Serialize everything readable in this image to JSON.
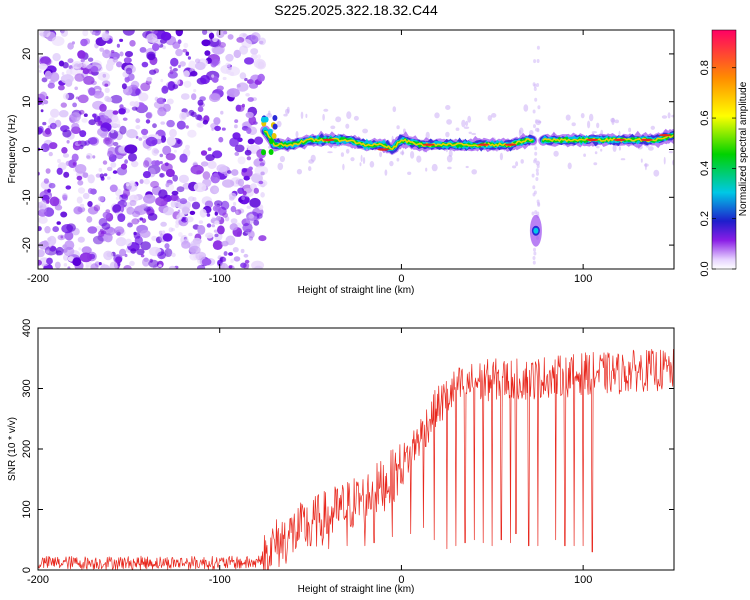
{
  "title": "S225.2025.322.18.32.C44",
  "chart_data": [
    {
      "type": "heatmap",
      "xlabel": "Height of straight line (km)",
      "ylabel": "Frequency (Hz)",
      "xlim": [
        -200,
        150
      ],
      "ylim": [
        -25,
        25
      ],
      "xticks": [
        -200,
        -100,
        0,
        100
      ],
      "yticks": [
        -20,
        -10,
        0,
        10,
        20
      ],
      "noise_region_x": [
        -200,
        -76
      ],
      "ridge": {
        "description_points_x": [
          -75,
          -70,
          -60,
          -50,
          -40,
          -30,
          -20,
          -10,
          -5,
          0,
          10,
          20,
          30,
          40,
          50,
          60,
          70,
          80,
          90,
          100,
          110,
          120,
          130,
          140,
          150
        ],
        "description_points_freq": [
          4,
          1,
          1,
          2,
          2,
          2,
          1,
          1,
          0,
          2,
          1,
          1,
          1,
          1,
          1,
          1,
          2,
          2,
          2,
          2,
          2,
          2,
          2,
          2,
          3
        ]
      },
      "isolated_blob": {
        "x": 74,
        "freq": -17
      },
      "colorbar": {
        "label": "Normalized spectral amplitude",
        "min": 0.0,
        "max": 0.95,
        "ticks": [
          0.0,
          0.2,
          0.4,
          0.6,
          0.8
        ],
        "tick_labels": [
          "0.0",
          "0.2",
          "0.4",
          "0.6",
          "0.8"
        ]
      }
    },
    {
      "type": "line",
      "xlabel": "Height of straight line (km)",
      "ylabel": "SNR (10 * v/v)",
      "xlim": [
        -200,
        150
      ],
      "ylim": [
        0,
        400
      ],
      "xticks": [
        -200,
        -100,
        0,
        100
      ],
      "yticks": [
        0,
        100,
        200,
        300,
        400
      ],
      "series": [
        {
          "name": "SNR",
          "color": "#e8281e",
          "trend_x": [
            -200,
            -150,
            -100,
            -80,
            -75,
            -70,
            -60,
            -50,
            -40,
            -30,
            -20,
            -10,
            0,
            10,
            20,
            30,
            40,
            50,
            60,
            70,
            80,
            90,
            100,
            110,
            120,
            130,
            140,
            150
          ],
          "trend_y": [
            12,
            12,
            12,
            12,
            25,
            40,
            60,
            75,
            90,
            105,
            120,
            140,
            170,
            220,
            270,
            300,
            310,
            315,
            315,
            315,
            320,
            320,
            325,
            325,
            325,
            330,
            330,
            330
          ],
          "dropout_x": [
            -50,
            -40,
            -30,
            -20,
            -15,
            -5,
            5,
            12,
            18,
            25,
            30,
            35,
            40,
            45,
            50,
            55,
            60,
            63,
            70,
            75,
            85,
            90,
            95,
            100,
            105
          ],
          "dropout_y": [
            40,
            35,
            40,
            40,
            45,
            55,
            60,
            70,
            50,
            35,
            40,
            45,
            50,
            45,
            40,
            50,
            45,
            60,
            40,
            40,
            50,
            40,
            40,
            40,
            30
          ]
        }
      ]
    }
  ]
}
